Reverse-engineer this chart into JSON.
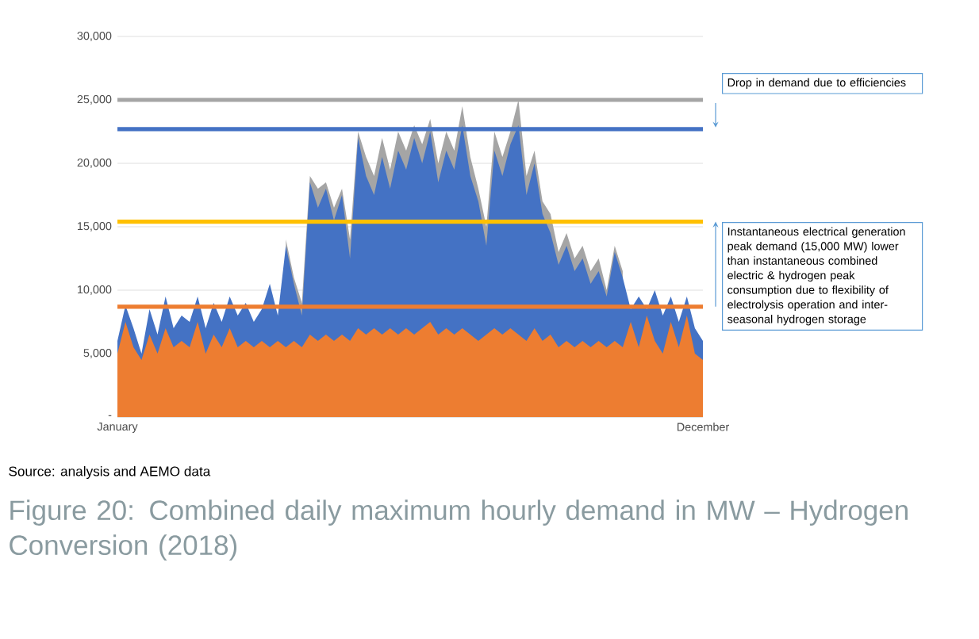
{
  "chart_data": {
    "type": "area",
    "categories": [
      "January",
      null,
      null,
      null,
      null,
      null,
      null,
      null,
      null,
      null,
      null,
      null,
      null,
      null,
      null,
      null,
      null,
      null,
      null,
      null,
      null,
      null,
      null,
      null,
      null,
      null,
      null,
      null,
      null,
      null,
      null,
      null,
      null,
      null,
      null,
      null,
      null,
      null,
      null,
      null,
      null,
      null,
      null,
      null,
      null,
      null,
      null,
      null,
      null,
      null,
      null,
      null,
      null,
      null,
      null,
      null,
      null,
      null,
      null,
      null,
      null,
      null,
      null,
      null,
      null,
      null,
      null,
      null,
      null,
      null,
      null,
      null,
      null,
      "December"
    ],
    "series": [
      {
        "color": "#a5a5a5",
        "values": [
          null,
          null,
          null,
          null,
          null,
          null,
          null,
          null,
          null,
          null,
          null,
          null,
          null,
          null,
          null,
          null,
          null,
          null,
          null,
          null,
          null,
          14000,
          11000,
          9000,
          19000,
          18000,
          18500,
          16500,
          18000,
          14000,
          22500,
          20500,
          19000,
          22000,
          19500,
          22500,
          21000,
          23000,
          21500,
          23500,
          20000,
          22500,
          21000,
          24500,
          20500,
          18000,
          15000,
          22500,
          20500,
          22500,
          25000,
          19000,
          21000,
          17000,
          16000,
          13000,
          14500,
          12500,
          13500,
          11500,
          12500,
          10000,
          13500,
          11500,
          null,
          null,
          null,
          null,
          null,
          null,
          null,
          null,
          null,
          null
        ]
      },
      {
        "color": "#4472c4",
        "values": [
          6000,
          8800,
          7000,
          5000,
          8500,
          6500,
          9500,
          7000,
          8000,
          7500,
          9500,
          7000,
          9000,
          7500,
          9500,
          8000,
          9000,
          7500,
          8500,
          10500,
          8000,
          13500,
          10500,
          8000,
          18500,
          16500,
          18000,
          15500,
          17500,
          12500,
          22000,
          19000,
          17500,
          20500,
          18000,
          21000,
          19500,
          22000,
          20000,
          22500,
          18500,
          21000,
          19500,
          23000,
          19000,
          17000,
          13500,
          21000,
          19000,
          21500,
          23000,
          17500,
          20000,
          16000,
          14500,
          12000,
          13500,
          11500,
          12500,
          10500,
          11500,
          9500,
          13000,
          11000,
          8500,
          9500,
          8500,
          10000,
          8000,
          9500,
          7500,
          9500,
          7000,
          6000
        ]
      },
      {
        "color": "#ed7d31",
        "values": [
          5000,
          7500,
          5500,
          4500,
          6500,
          5000,
          7000,
          5500,
          6000,
          5500,
          7500,
          5000,
          6500,
          5500,
          7000,
          5500,
          6000,
          5500,
          6000,
          5500,
          6000,
          5500,
          6000,
          5500,
          6500,
          6000,
          6500,
          6000,
          6500,
          6000,
          7000,
          6500,
          7000,
          6500,
          7000,
          6500,
          7000,
          6500,
          7000,
          7500,
          6500,
          7000,
          6500,
          7000,
          6500,
          6000,
          6500,
          7000,
          6500,
          7000,
          6500,
          6000,
          7000,
          6000,
          6500,
          5500,
          6000,
          5500,
          6000,
          5500,
          6000,
          5500,
          6000,
          5500,
          7500,
          5500,
          8000,
          6000,
          5000,
          7500,
          5500,
          8000,
          5000,
          4500
        ]
      }
    ],
    "ylim": [
      0,
      30000
    ],
    "yticks": [
      {
        "value": 0,
        "label": "-"
      },
      {
        "value": 5000,
        "label": "5,000"
      },
      {
        "value": 10000,
        "label": "10,000"
      },
      {
        "value": 15000,
        "label": "15,000"
      },
      {
        "value": 20000,
        "label": "20,000"
      },
      {
        "value": 25000,
        "label": "25,000"
      },
      {
        "value": 30000,
        "label": "30,000"
      }
    ],
    "grid": "y",
    "ref_lines": [
      {
        "axis": "y",
        "value": 25000,
        "color": "#a5a5a5"
      },
      {
        "axis": "y",
        "value": 22700,
        "color": "#4472c4"
      },
      {
        "axis": "y",
        "value": 15400,
        "color": "#ffc000"
      },
      {
        "axis": "y",
        "value": 8700,
        "color": "#ed7d31"
      }
    ],
    "annotations": [
      "Drop in demand due to efficiencies",
      "Instantaneous electrical generation peak demand (15,000 MW) lower than instantaneous combined electric & hydrogen peak consumption due to flexibility of electrolysis operation and inter-seasonal hydrogen storage",
      "Source: analysis and AEMO data",
      "Figure 20: Combined daily maximum hourly demand in MW – Hydrogen Conversion (2018)"
    ]
  }
}
